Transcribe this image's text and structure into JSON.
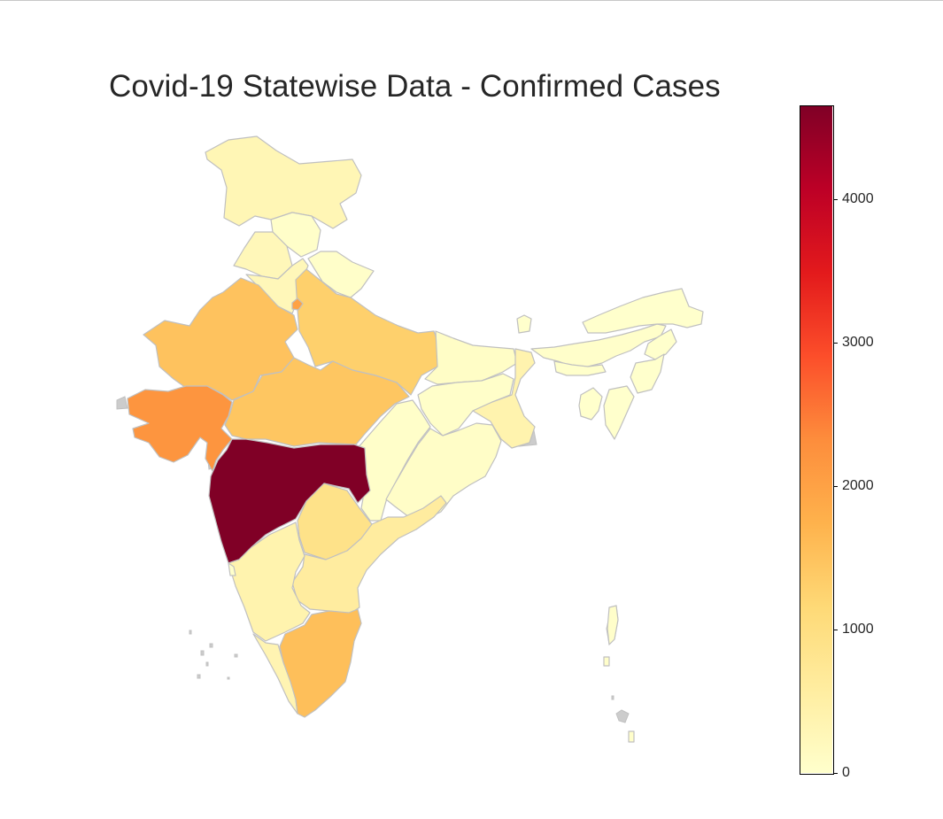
{
  "title": "Covid-19 Statewise Data - Confirmed Cases",
  "colorbar": {
    "colormap": "YlOrRd",
    "min": 0,
    "max": 4650,
    "ticks": [
      "0",
      "1000",
      "2000",
      "3000",
      "4000"
    ],
    "stops": [
      "#ffffcc",
      "#ffeda0",
      "#fed976",
      "#feb24c",
      "#fd8d3c",
      "#fc4e2a",
      "#e31a1c",
      "#bd0026",
      "#800026"
    ]
  },
  "colors": {
    "border": "#c0c0c0",
    "no_data": "#cccccc"
  },
  "states": [
    {
      "name": "Jammu and Kashmir",
      "value": 300
    },
    {
      "name": "Himachal Pradesh",
      "value": 40
    },
    {
      "name": "Punjab",
      "value": 250
    },
    {
      "name": "Delhi",
      "value": 2000
    },
    {
      "name": "Uttarakhand",
      "value": 40
    },
    {
      "name": "Haryana",
      "value": 250
    },
    {
      "name": "Rajasthan",
      "value": 1500
    },
    {
      "name": "Uttar Pradesh",
      "value": 1300
    },
    {
      "name": "Gujarat",
      "value": 2200
    },
    {
      "name": "Madhya Pradesh",
      "value": 1450
    },
    {
      "name": "Bihar",
      "value": 80
    },
    {
      "name": "Jharkhand",
      "value": 40
    },
    {
      "name": "West Bengal",
      "value": 400
    },
    {
      "name": "Chhattisgarh",
      "value": 40
    },
    {
      "name": "Odisha",
      "value": 60
    },
    {
      "name": "Maharashtra",
      "value": 4650
    },
    {
      "name": "Telangana",
      "value": 900
    },
    {
      "name": "Andhra Pradesh",
      "value": 600
    },
    {
      "name": "Karnataka",
      "value": 400
    },
    {
      "name": "Goa",
      "value": 10
    },
    {
      "name": "Kerala",
      "value": 350
    },
    {
      "name": "Tamil Nadu",
      "value": 1550
    },
    {
      "name": "Sikkim",
      "value": 0
    },
    {
      "name": "Assam",
      "value": 30
    },
    {
      "name": "Arunachal Pradesh",
      "value": 0
    },
    {
      "name": "Meghalaya",
      "value": 10
    },
    {
      "name": "Nagaland",
      "value": 0
    },
    {
      "name": "Manipur",
      "value": 2
    },
    {
      "name": "Mizoram",
      "value": 1
    },
    {
      "name": "Tripura",
      "value": 2
    },
    {
      "name": "Andaman and Nicobar",
      "value": 30
    }
  ]
}
